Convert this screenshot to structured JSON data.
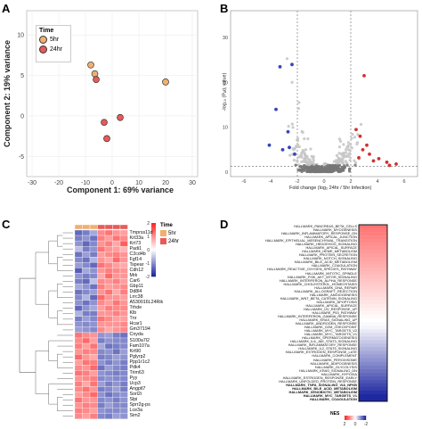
{
  "panels": {
    "A": {
      "label": "A",
      "legend": {
        "title": "Time",
        "items": [
          {
            "name": "5hr",
            "color": "#f0b070"
          },
          {
            "name": "24hr",
            "color": "#e85a5a"
          }
        ]
      },
      "xlabel": "Component 1: 69% variance",
      "ylabel": "Component 2: 19% variance",
      "xticks": [
        "-30",
        "-20",
        "-10",
        "0",
        "10",
        "20",
        "30"
      ],
      "yticks": [
        "10",
        "5",
        "0",
        "-5"
      ]
    },
    "B": {
      "label": "B",
      "xlabel": "Fold change (log₂ 24hr / 5hr Infection)",
      "ylabel": "-log₁₀ (Pₐdⱼ value)",
      "xticks": [
        "-6",
        "-4",
        "-2",
        "0",
        "2",
        "4",
        "6"
      ],
      "yticks": [
        "30",
        "20",
        "10",
        "0"
      ]
    },
    "C": {
      "label": "C",
      "legend": {
        "title": "Time",
        "items": [
          {
            "name": "5hr",
            "color": "#f0b070"
          },
          {
            "name": "24hr",
            "color": "#e85a5a"
          }
        ]
      },
      "scale_ticks": [
        "2",
        "1",
        "0",
        "-1",
        "-2"
      ],
      "genes": [
        "Tmprss11d",
        "Krt33a",
        "Krt73",
        "Padi1",
        "C2cd4b",
        "Fgf14",
        "Tspear",
        "Cdh12",
        "Mrk",
        "Car6",
        "Gbp11",
        "Dd8l4",
        "Lrrc38",
        "A530016L24Rik",
        "Trhde",
        "Klb",
        "Tnr",
        "Hcar1",
        "Gm37194",
        "Cnyda",
        "S100a7l2",
        "Fam107a",
        "Krt90",
        "Pglyrp2",
        "Ppp1r1c2",
        "Pdk4",
        "Trim63",
        "Pyy",
        "Ucp3",
        "Angptl7",
        "Sorl2i",
        "Slpi",
        "Sprr2g-ps",
        "Lce3a",
        "Sim2"
      ]
    },
    "D": {
      "label": "D",
      "legend_title": "NES",
      "legend_ticks": [
        "2",
        "0",
        "-2"
      ],
      "pathways": [
        {
          "name": "HALLMARK_PANCREAS_BETA_CELLS",
          "bold": false
        },
        {
          "name": "HALLMARK_MYOGENESIS",
          "bold": false
        },
        {
          "name": "HALLMARK_INFLAMMATORY_RESPONSE_DN",
          "bold": false
        },
        {
          "name": "HALLMARK_APICAL_JUNCTION",
          "bold": false
        },
        {
          "name": "HALLMARK_EPITHELIAL_MESENCHYMAL_TRANSITION",
          "bold": false
        },
        {
          "name": "HALLMARK_HEDGEHOG_SIGNALING",
          "bold": false
        },
        {
          "name": "HALLMARK_APICAL_SURFACE",
          "bold": false
        },
        {
          "name": "HALLMARK_HEME_METABOLISM",
          "bold": false
        },
        {
          "name": "HALLMARK_PROTEIN_SECRETION",
          "bold": false
        },
        {
          "name": "HALLMARK_NOTCH_SIGNALING",
          "bold": false
        },
        {
          "name": "HALLMARK_BILE_ACID_METABOLISM",
          "bold": false
        },
        {
          "name": "HALLMARK_COAGULATION",
          "bold": false
        },
        {
          "name": "HALLMARK_REACTIVE_OXYGEN_SPECIES_PATHWAY",
          "bold": false
        },
        {
          "name": "HALLMARK_MITOTIC_SPINDLE",
          "bold": false
        },
        {
          "name": "HALLMARK_PI3K_AKT_MTOR_SIGNALING",
          "bold": false
        },
        {
          "name": "HALLMARK_INTERFERON_ALPHA_RESPONSE",
          "bold": false
        },
        {
          "name": "HALLMARK_CHOLESTEROL_HOMEOSTASIS",
          "bold": false
        },
        {
          "name": "HALLMARK_DNA_REPAIR",
          "bold": false
        },
        {
          "name": "HALLMARK_ALLOGRAFT_REJECTION",
          "bold": false
        },
        {
          "name": "HALLMARK_ANGIOGENESIS",
          "bold": false
        },
        {
          "name": "HALLMARK_WNT_BETA_CATENIN_SIGNALING",
          "bold": false
        },
        {
          "name": "HALLMARK_APOPTOSIS",
          "bold": false
        },
        {
          "name": "HALLMARK_APICAL_SURFACE",
          "bold": false
        },
        {
          "name": "HALLMARK_UV_RESPONSE_UP",
          "bold": false
        },
        {
          "name": "HALLMARK_P53_PATHWAY",
          "bold": false
        },
        {
          "name": "HALLMARK_INTERFERON_GAMMA_RESPONSE",
          "bold": false
        },
        {
          "name": "HALLMARK_KRAS_SIGNALING_UP",
          "bold": false
        },
        {
          "name": "HALLMARK_ANDROGEN_RESPONSE",
          "bold": false
        },
        {
          "name": "HALLMARK_G2M_CHECKPOINT",
          "bold": false
        },
        {
          "name": "HALLMARK_MYC_TARGETS_V2",
          "bold": false
        },
        {
          "name": "HALLMARK_MYC_TARGETS_V1",
          "bold": false
        },
        {
          "name": "HALLMARK_SPERMATOGENESIS",
          "bold": false
        },
        {
          "name": "HALLMARK_IL6_JAK_STAT3_SIGNALING",
          "bold": false
        },
        {
          "name": "HALLMARK_INFLAMMATORY_RESPONSE",
          "bold": false
        },
        {
          "name": "HALLMARK_IL2_STAT5_SIGNALING",
          "bold": false
        },
        {
          "name": "HALLMARK_ESTROGEN_RESPONSE_LATE",
          "bold": false
        },
        {
          "name": "HALLMARK_COMPLEMENT",
          "bold": false
        },
        {
          "name": "HALLMARK_PEROXISOME",
          "bold": false
        },
        {
          "name": "HALLMARK_ADIPOGENESIS",
          "bold": false
        },
        {
          "name": "HALLMARK_GLYCOLYSIS",
          "bold": false
        },
        {
          "name": "HALLMARK_KRAS_SIGNALING_DN",
          "bold": false
        },
        {
          "name": "HALLMARK_HYPOXIA",
          "bold": false
        },
        {
          "name": "HALLMARK_ESTROGEN_RESPONSE_EARLY",
          "bold": false
        },
        {
          "name": "HALLMARK_UNFOLDED_PROTEIN_RESPONSE",
          "bold": false
        },
        {
          "name": "HALLMARK_TNFA_SIGNALING_VIA_NFKB",
          "bold": true
        },
        {
          "name": "HALLMARK_BILE_ACID_METABOLISM",
          "bold": true
        },
        {
          "name": "HALLMARK_XENOBIOTIC_METABOLISM",
          "bold": true
        },
        {
          "name": "HALLMARK_MYC_TARGETS_V1",
          "bold": true
        },
        {
          "name": "HALLMARK_COAGULATION",
          "bold": true
        }
      ]
    }
  },
  "chart_data": [
    {
      "panel": "A",
      "type": "scatter",
      "xlabel": "Component 1: 69% variance",
      "ylabel": "Component 2: 19% variance",
      "xlim": [
        -32,
        32
      ],
      "ylim": [
        -7.5,
        13
      ],
      "series": [
        {
          "name": "5hr",
          "color": "#f0b070",
          "points": [
            [
              -8,
              6.3
            ],
            [
              -6.5,
              5.2
            ],
            [
              20,
              4.2
            ]
          ]
        },
        {
          "name": "24hr",
          "color": "#e85a5a",
          "points": [
            [
              -6,
              4.5
            ],
            [
              -3,
              -0.8
            ],
            [
              3,
              -0.2
            ],
            [
              -2,
              -2.8
            ]
          ]
        }
      ]
    },
    {
      "panel": "B",
      "type": "scatter",
      "xlabel": "Fold change (log₂ 24hr / 5hr Infection)",
      "ylabel": "-log₁₀ (Pₐdⱼ value)",
      "xlim": [
        -7,
        7
      ],
      "ylim": [
        -1,
        36
      ],
      "series": [
        {
          "name": "down",
          "color": "#3344bb",
          "points": [
            [
              -2.4,
              24
            ],
            [
              -3.3,
              23.5
            ],
            [
              -3.6,
              14
            ],
            [
              -2.7,
              9
            ],
            [
              -4.1,
              6
            ],
            [
              -2.6,
              5.5
            ],
            [
              -3.1,
              5
            ],
            [
              -2.2,
              4
            ]
          ]
        },
        {
          "name": "up",
          "color": "#cc3333",
          "points": [
            [
              3.0,
              21.5
            ],
            [
              2.4,
              9.5
            ],
            [
              2.7,
              8
            ],
            [
              3.2,
              6
            ],
            [
              2.9,
              5
            ],
            [
              3.4,
              4
            ],
            [
              4.1,
              3
            ],
            [
              3.7,
              2.5
            ],
            [
              4.7,
              2.2
            ],
            [
              4.9,
              1.5
            ],
            [
              5.4,
              1.8
            ],
            [
              2.6,
              3.2
            ]
          ]
        }
      ]
    },
    {
      "panel": "C",
      "type": "heatmap",
      "legend": "Time",
      "columns": [
        "5hr",
        "5hr",
        "5hr",
        "24hr",
        "24hr",
        "24hr",
        "24hr"
      ],
      "rows": [
        "Tmprss11d",
        "Krt33a",
        "Krt73",
        "Padi1",
        "C2cd4b",
        "Fgf14",
        "Tspear",
        "Cdh12",
        "Mrk",
        "Car6",
        "Gbp11",
        "Dd8l4",
        "Lrrc38",
        "A530016L24Rik",
        "Trhde",
        "Klb",
        "Tnr",
        "Hcar1",
        "Gm37194",
        "Cnyda",
        "S100a7l2",
        "Fam107a",
        "Krt90",
        "Pglyrp2",
        "Ppp1r1c2",
        "Pdk4",
        "Trim63",
        "Pyy",
        "Ucp3",
        "Angptl7",
        "Sorl2i",
        "Slpi",
        "Sprr2g-ps",
        "Lce3a",
        "Sim2"
      ],
      "range": [
        -2,
        2
      ],
      "values": [
        [
          -1.4,
          -1.2,
          -0.8,
          1.1,
          1.3,
          1.0,
          0.9
        ],
        [
          -1.2,
          -1.0,
          -1.3,
          1.2,
          0.9,
          1.3,
          1.1
        ],
        [
          -1.0,
          -1.4,
          -1.1,
          1.0,
          1.2,
          0.8,
          1.5
        ],
        [
          -0.6,
          -1.2,
          -1.0,
          1.3,
          1.0,
          0.9,
          0.7
        ],
        [
          -1.3,
          -0.9,
          -1.2,
          0.9,
          1.1,
          1.2,
          1.0
        ],
        [
          -1.1,
          -1.3,
          -0.7,
          1.0,
          0.8,
          1.4,
          1.0
        ],
        [
          -0.9,
          -1.1,
          -1.4,
          1.3,
          1.1,
          0.9,
          0.8
        ],
        [
          -1.5,
          -0.8,
          -1.0,
          1.0,
          1.2,
          1.1,
          1.0
        ],
        [
          -1.0,
          -1.2,
          -1.1,
          0.8,
          1.4,
          1.0,
          1.0
        ],
        [
          -1.2,
          -1.4,
          -0.6,
          1.1,
          1.0,
          1.2,
          0.9
        ],
        [
          -0.8,
          -1.0,
          -1.3,
          1.2,
          0.9,
          1.0,
          1.1
        ],
        [
          -1.3,
          -1.1,
          -0.9,
          1.0,
          1.3,
          0.8,
          1.2
        ],
        [
          -1.1,
          -0.7,
          -1.4,
          1.4,
          1.0,
          1.0,
          0.9
        ],
        [
          -1.0,
          -1.3,
          -1.0,
          1.1,
          0.9,
          1.3,
          1.0
        ],
        [
          -1.4,
          -1.0,
          -0.8,
          0.9,
          1.2,
          1.1,
          1.1
        ],
        [
          -0.7,
          -1.2,
          -1.2,
          1.0,
          1.0,
          1.2,
          1.0
        ],
        [
          -1.2,
          -0.9,
          -1.1,
          1.3,
          1.1,
          0.9,
          0.9
        ],
        [
          -1.0,
          -1.1,
          -1.0,
          1.0,
          1.0,
          1.0,
          1.1
        ],
        [
          -0.9,
          -1.0,
          -1.1,
          1.1,
          0.8,
          1.0,
          1.1
        ],
        [
          1.3,
          1.1,
          1.0,
          -1.0,
          -0.9,
          -1.2,
          -1.3
        ],
        [
          1.1,
          1.4,
          0.9,
          -1.2,
          -1.0,
          -1.1,
          -1.1
        ],
        [
          1.2,
          0.9,
          1.3,
          -0.8,
          -1.3,
          -1.2,
          -1.1
        ],
        [
          1.0,
          1.2,
          1.1,
          -1.1,
          -1.0,
          -1.3,
          -0.9
        ],
        [
          1.4,
          1.0,
          0.8,
          -1.2,
          -1.1,
          -0.9,
          -1.0
        ],
        [
          0.9,
          1.3,
          1.2,
          -1.0,
          -1.2,
          -1.0,
          -1.2
        ],
        [
          1.1,
          1.0,
          1.4,
          -1.3,
          -0.9,
          -1.1,
          -1.2
        ],
        [
          1.3,
          1.2,
          0.9,
          -1.0,
          -1.1,
          -1.2,
          -1.1
        ],
        [
          1.0,
          1.1,
          1.2,
          -1.1,
          -1.0,
          -1.1,
          -1.1
        ],
        [
          1.2,
          0.8,
          1.3,
          -0.9,
          -1.2,
          -1.0,
          -1.2
        ],
        [
          1.1,
          1.3,
          1.0,
          -1.2,
          -1.1,
          -0.9,
          -1.2
        ],
        [
          0.9,
          1.1,
          1.4,
          -1.0,
          -1.3,
          -1.1,
          -1.0
        ],
        [
          1.3,
          1.0,
          1.0,
          -1.1,
          -1.0,
          -1.2,
          -1.0
        ],
        [
          1.0,
          1.2,
          1.1,
          -1.2,
          -0.9,
          -1.1,
          -1.1
        ],
        [
          1.2,
          1.1,
          0.9,
          -1.0,
          -1.1,
          -1.1,
          -1.0
        ],
        [
          1.1,
          0.9,
          1.2,
          -1.1,
          -1.2,
          -0.9,
          -1.0
        ]
      ]
    },
    {
      "panel": "D",
      "type": "heatmap",
      "legend": "NES",
      "range": [
        -2,
        2
      ],
      "values": [
        1.3,
        1.25,
        1.2,
        1.15,
        1.1,
        1.05,
        1.0,
        0.95,
        0.9,
        0.85,
        0.8,
        0.75,
        0.7,
        0.65,
        0.6,
        0.55,
        0.5,
        0.45,
        0.4,
        0.35,
        0.3,
        0.25,
        0.2,
        0.15,
        0.1,
        0.05,
        0.0,
        -0.05,
        -0.1,
        -0.2,
        -0.3,
        -0.4,
        -0.5,
        -0.6,
        -0.7,
        -0.8,
        -0.9,
        -1.0,
        -1.1,
        -1.2,
        -1.3,
        -1.4,
        -1.5,
        -1.6,
        -1.7,
        -1.8,
        -1.9,
        -2.0,
        -2.1
      ]
    }
  ]
}
